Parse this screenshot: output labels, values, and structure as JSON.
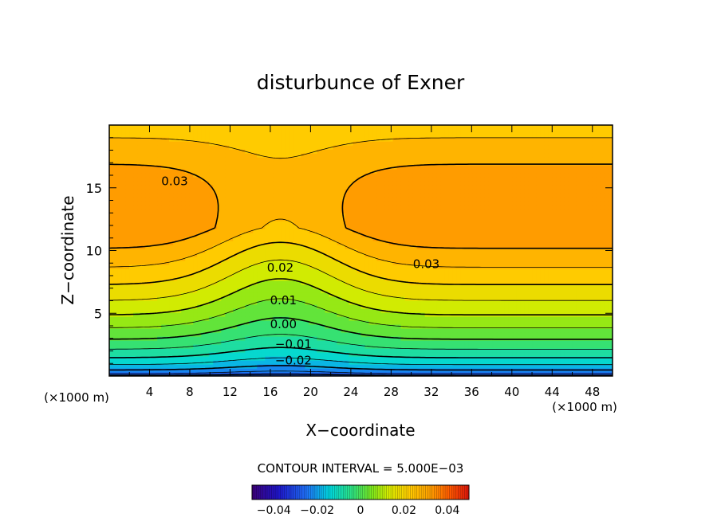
{
  "chart_data": {
    "type": "contour",
    "title": "disturbunce of Exner",
    "xlabel": "X−coordinate",
    "ylabel": "Z−coordinate",
    "x_unit": "(×1000 m)",
    "z_unit": "(×1000 m)",
    "xlim": [
      0,
      50
    ],
    "ylim": [
      0,
      20
    ],
    "x_ticks": [
      4,
      8,
      12,
      16,
      20,
      24,
      28,
      32,
      36,
      40,
      44,
      48
    ],
    "y_ticks": [
      5,
      10,
      15
    ],
    "contour_interval_text": "CONTOUR INTERVAL = 5.000E−03",
    "contour_labels": [
      {
        "text": "0.03",
        "x": 6.5,
        "z": 15.5
      },
      {
        "text": "0.03",
        "x": 31.5,
        "z": 8.9
      },
      {
        "text": "0.02",
        "x": 17.0,
        "z": 8.6
      },
      {
        "text": "0.01",
        "x": 17.3,
        "z": 6.0
      },
      {
        "text": "0.00",
        "x": 17.3,
        "z": 4.1
      },
      {
        "text": "−0.01",
        "x": 18.3,
        "z": 2.5
      },
      {
        "text": "−0.02",
        "x": 18.3,
        "z": 1.2
      }
    ],
    "colorbar": {
      "min": -0.05,
      "max": 0.05,
      "ticks": [
        "−0.04",
        "−0.02",
        "0",
        "0.02",
        "0.04"
      ],
      "tick_values": [
        -0.04,
        -0.02,
        0,
        0.02,
        0.04
      ]
    },
    "grid": false
  }
}
